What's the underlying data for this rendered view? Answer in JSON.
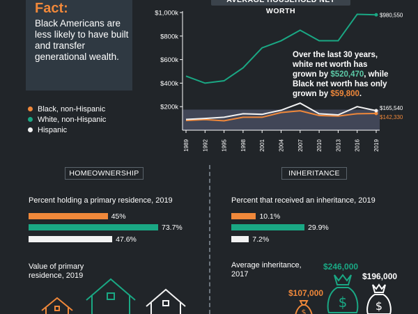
{
  "fact": {
    "title": "Fact:",
    "text": "Black Americans are less likely to have built and transfer generational wealth."
  },
  "legend": [
    {
      "label": "Black, non-Hispanic",
      "color": "#f0883a"
    },
    {
      "label": "White, non-Hispanic",
      "color": "#1aa884"
    },
    {
      "label": "Hispanic",
      "color": "#f2f2f2"
    }
  ],
  "annotation": {
    "line1": "Over the last 30 years, white net worth has grown by ",
    "white_growth": "$520,470",
    "line2": ", while Black net worth has only grown by ",
    "black_growth": "$59,800",
    "line3": "."
  },
  "chart_data": {
    "type": "line",
    "title": "AVERAGE HOUSEHOLD NET WORTH",
    "x": [
      "1989",
      "1992",
      "1995",
      "1998",
      "2001",
      "2004",
      "2007",
      "2010",
      "2013",
      "2016",
      "2019"
    ],
    "ylim": [
      0,
      1000000
    ],
    "y_ticks": [
      "$200k",
      "$400k",
      "$600k",
      "$800k",
      "$1,000k"
    ],
    "series": [
      {
        "name": "White, non-Hispanic",
        "color": "#1aa884",
        "values": [
          460000,
          400000,
          420000,
          530000,
          700000,
          760000,
          850000,
          760000,
          760000,
          985000,
          980550
        ]
      },
      {
        "name": "Black, non-Hispanic",
        "color": "#f0883a",
        "values": [
          82000,
          90000,
          80000,
          110000,
          110000,
          150000,
          165000,
          125000,
          120000,
          140000,
          142330
        ]
      },
      {
        "name": "Hispanic",
        "color": "#f2f2f2",
        "values": [
          92000,
          100000,
          110000,
          140000,
          135000,
          170000,
          230000,
          140000,
          130000,
          200000,
          165540
        ]
      }
    ],
    "end_labels": {
      "white": "$980,550",
      "hispanic": "$165,540",
      "black": "$142,330"
    }
  },
  "homeownership": {
    "header": "HOMEOWNERSHIP",
    "subtitle": "Percent holding a primary residence, 2019",
    "bars": [
      {
        "group": "Black",
        "value": 45,
        "label": "45%",
        "color": "#f0883a"
      },
      {
        "group": "White",
        "value": 73.7,
        "label": "73.7%",
        "color": "#1aa884"
      },
      {
        "group": "Hispanic",
        "value": 47.6,
        "label": "47.6%",
        "color": "#f2f2f2"
      }
    ],
    "value_label": "Value of primary residence, 2019"
  },
  "inheritance": {
    "header": "INHERITANCE",
    "subtitle": "Percent that received an inheritance, 2019",
    "bars": [
      {
        "group": "Black",
        "value": 10.1,
        "label": "10.1%",
        "color": "#f0883a"
      },
      {
        "group": "White",
        "value": 29.9,
        "label": "29.9%",
        "color": "#1aa884"
      },
      {
        "group": "Hispanic",
        "value": 7.2,
        "label": "7.2%",
        "color": "#f2f2f2"
      }
    ],
    "avg_label": "Average inheritance, 2017",
    "amounts": [
      {
        "group": "Black",
        "label": "$107,000",
        "color": "#f0883a"
      },
      {
        "group": "White",
        "label": "$246,000",
        "color": "#1aa884"
      },
      {
        "group": "Hispanic",
        "label": "$196,000",
        "color": "#ffffff"
      }
    ]
  },
  "icons": {
    "house": "house-icon",
    "money_bag": "money-bag-icon"
  }
}
